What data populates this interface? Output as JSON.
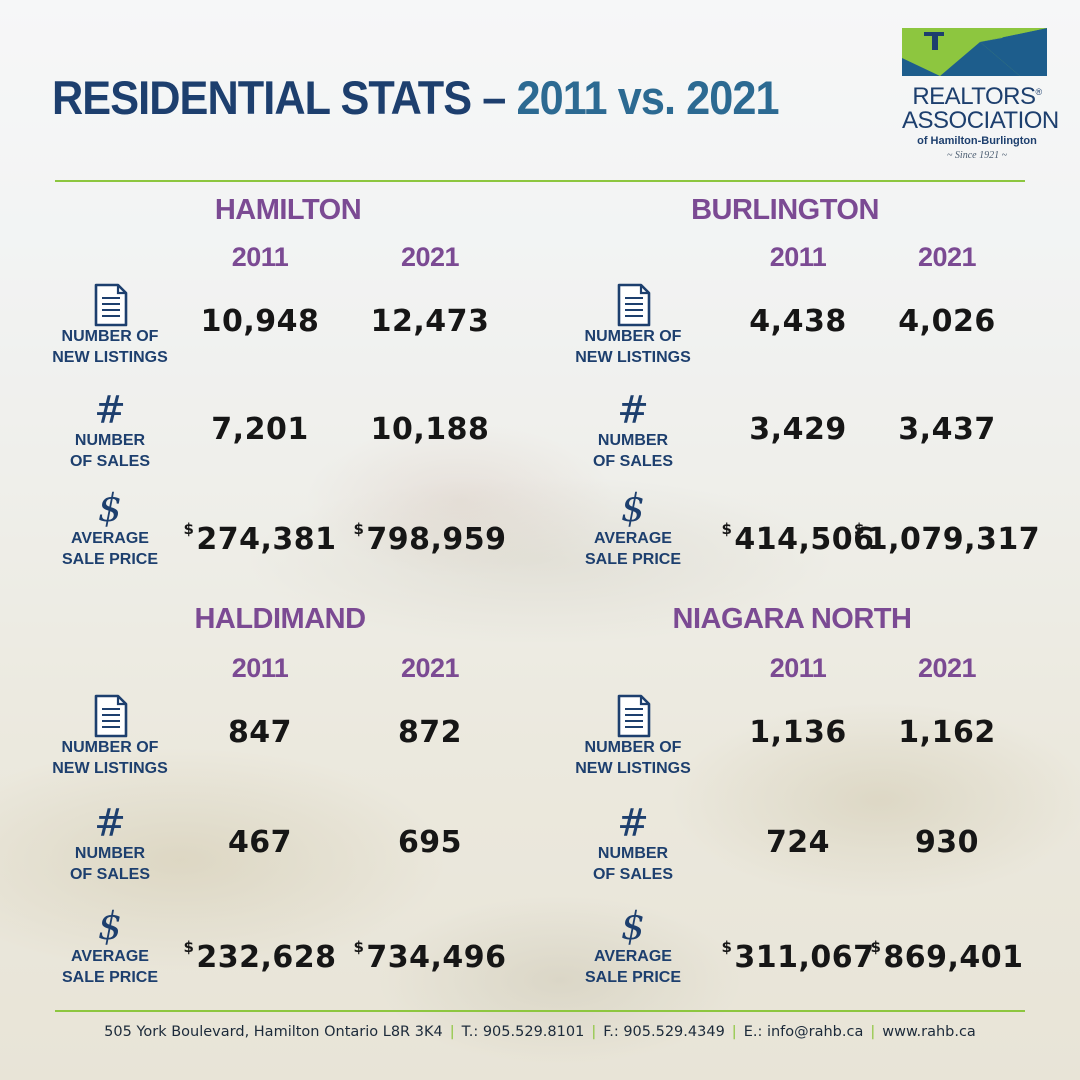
{
  "header": {
    "title_part1": "RESIDENTIAL STATS – ",
    "title_part2": "2011 vs. 2021"
  },
  "logo": {
    "line1": "REALTORS",
    "registered_mark": "®",
    "line2": "ASSOCIATION",
    "line3": "of Hamilton-Burlington",
    "line4": "~ Since 1921 ~",
    "colors": {
      "green": "#8dc63f",
      "blue": "#1d5d8c",
      "navy": "#1d3f6e"
    }
  },
  "colors": {
    "accent_purple": "#7b4a93",
    "navy": "#1d3f6e",
    "rule_green": "#8dc63f"
  },
  "labels": {
    "listings_l1": "NUMBER OF",
    "listings_l2": "NEW LISTINGS",
    "sales_l1": "NUMBER",
    "sales_l2": "OF SALES",
    "price_l1": "AVERAGE",
    "price_l2": "SALE PRICE",
    "sales_glyph": "#",
    "price_glyph": "$",
    "currency": "$",
    "icons": [
      "document-icon",
      "hash-icon",
      "dollar-icon"
    ]
  },
  "regions": [
    {
      "name": "HAMILTON",
      "year1": "2011",
      "year2": "2021",
      "listings": [
        "10,948",
        "12,473"
      ],
      "sales": [
        "7,201",
        "10,188"
      ],
      "price": [
        "274,381",
        "798,959"
      ]
    },
    {
      "name": "BURLINGTON",
      "year1": "2011",
      "year2": "2021",
      "listings": [
        "4,438",
        "4,026"
      ],
      "sales": [
        "3,429",
        "3,437"
      ],
      "price": [
        "414,506",
        "1,079,317"
      ]
    },
    {
      "name": "HALDIMAND",
      "year1": "2011",
      "year2": "2021",
      "listings": [
        "847",
        "872"
      ],
      "sales": [
        "467",
        "695"
      ],
      "price": [
        "232,628",
        "734,496"
      ]
    },
    {
      "name": "NIAGARA NORTH",
      "year1": "2011",
      "year2": "2021",
      "listings": [
        "1,136",
        "1,162"
      ],
      "sales": [
        "724",
        "930"
      ],
      "price": [
        "311,067",
        "869,401"
      ]
    }
  ],
  "footer": {
    "address": "505 York Boulevard, Hamilton Ontario  L8R 3K4",
    "phone": "T.: 905.529.8101",
    "fax": "F.: 905.529.4349",
    "email": "E.: info@rahb.ca",
    "web": "www.rahb.ca",
    "separator": "|"
  }
}
